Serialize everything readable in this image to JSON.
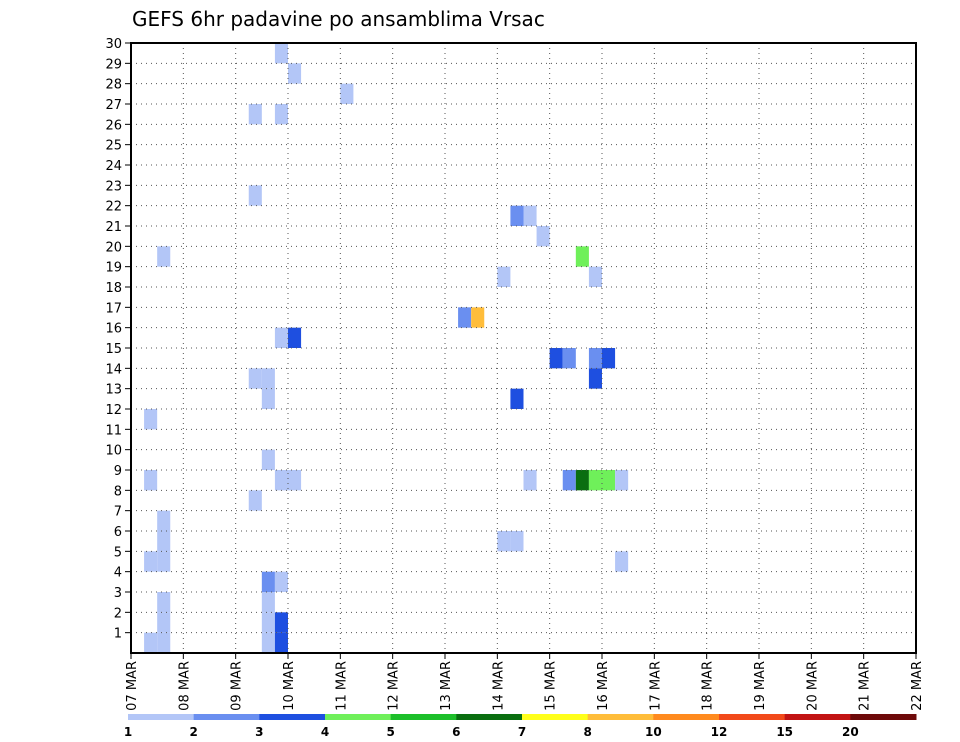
{
  "chart_data": {
    "type": "heatmap",
    "title": "GEFS 6hr padavine po ansamblima Vrsac",
    "xlabel": "",
    "ylabel": "",
    "x_tick_labels": [
      "07 MAR",
      "08 MAR",
      "09 MAR",
      "10 MAR",
      "11 MAR",
      "12 MAR",
      "13 MAR",
      "14 MAR",
      "15 MAR",
      "16 MAR",
      "17 MAR",
      "18 MAR",
      "19 MAR",
      "20 MAR",
      "21 MAR",
      "22 MAR"
    ],
    "y_tick_labels": [
      "1",
      "2",
      "3",
      "4",
      "5",
      "6",
      "7",
      "8",
      "9",
      "10",
      "11",
      "12",
      "13",
      "14",
      "15",
      "16",
      "17",
      "18",
      "19",
      "20",
      "21",
      "22",
      "23",
      "24",
      "25",
      "26",
      "27",
      "28",
      "29",
      "30"
    ],
    "xlim": [
      0,
      60
    ],
    "ylim": [
      0,
      30
    ],
    "grid": true,
    "colorbar": {
      "labels": [
        "1",
        "2",
        "3",
        "4",
        "5",
        "6",
        "7",
        "8",
        "10",
        "12",
        "15",
        "20"
      ],
      "colors": [
        "#b3c6f7",
        "#6a8ff0",
        "#1e4fe0",
        "#6ff05a",
        "#1dbf2a",
        "#0a6e10",
        "#ffff1a",
        "#ffbd3a",
        "#ff8a1e",
        "#f24a1a",
        "#c21414",
        "#6e0a0a"
      ]
    },
    "cells": [
      {
        "x": 1,
        "y": 0,
        "v": 1
      },
      {
        "x": 2,
        "y": 0,
        "v": 1
      },
      {
        "x": 2,
        "y": 1,
        "v": 1
      },
      {
        "x": 2,
        "y": 2,
        "v": 1
      },
      {
        "x": 2,
        "y": 4,
        "v": 1
      },
      {
        "x": 2,
        "y": 5,
        "v": 1
      },
      {
        "x": 2,
        "y": 6,
        "v": 1
      },
      {
        "x": 1,
        "y": 4,
        "v": 1
      },
      {
        "x": 1,
        "y": 8,
        "v": 1
      },
      {
        "x": 1,
        "y": 11,
        "v": 1
      },
      {
        "x": 2,
        "y": 19,
        "v": 1
      },
      {
        "x": 10,
        "y": 0,
        "v": 1
      },
      {
        "x": 10,
        "y": 1,
        "v": 1
      },
      {
        "x": 10,
        "y": 2,
        "v": 1
      },
      {
        "x": 10,
        "y": 3,
        "v": 2.5
      },
      {
        "x": 11,
        "y": 0,
        "v": 3.5
      },
      {
        "x": 11,
        "y": 1,
        "v": 3.5
      },
      {
        "x": 11,
        "y": 3,
        "v": 1
      },
      {
        "x": 9,
        "y": 7,
        "v": 1
      },
      {
        "x": 11,
        "y": 8,
        "v": 1
      },
      {
        "x": 12,
        "y": 8,
        "v": 1
      },
      {
        "x": 10,
        "y": 9,
        "v": 1
      },
      {
        "x": 10,
        "y": 12,
        "v": 1
      },
      {
        "x": 9,
        "y": 13,
        "v": 1
      },
      {
        "x": 10,
        "y": 13,
        "v": 1
      },
      {
        "x": 11,
        "y": 15,
        "v": 1
      },
      {
        "x": 12,
        "y": 15,
        "v": 3.5
      },
      {
        "x": 9,
        "y": 22,
        "v": 1
      },
      {
        "x": 9,
        "y": 26,
        "v": 1
      },
      {
        "x": 11,
        "y": 26,
        "v": 1
      },
      {
        "x": 11,
        "y": 29,
        "v": 1
      },
      {
        "x": 12,
        "y": 28,
        "v": 1
      },
      {
        "x": 16,
        "y": 27,
        "v": 1
      },
      {
        "x": 28,
        "y": 5,
        "v": 1
      },
      {
        "x": 29,
        "y": 5,
        "v": 1
      },
      {
        "x": 25,
        "y": 16,
        "v": 2.5
      },
      {
        "x": 26,
        "y": 16,
        "v": 8.5
      },
      {
        "x": 28,
        "y": 18,
        "v": 1
      },
      {
        "x": 29,
        "y": 21,
        "v": 2.5
      },
      {
        "x": 30,
        "y": 21,
        "v": 1
      },
      {
        "x": 29,
        "y": 12,
        "v": 3.5
      },
      {
        "x": 31,
        "y": 20,
        "v": 1
      },
      {
        "x": 30,
        "y": 8,
        "v": 1
      },
      {
        "x": 32,
        "y": 14,
        "v": 3.5
      },
      {
        "x": 33,
        "y": 14,
        "v": 2.5
      },
      {
        "x": 34,
        "y": 19,
        "v": 4.5
      },
      {
        "x": 35,
        "y": 18,
        "v": 1
      },
      {
        "x": 35,
        "y": 14,
        "v": 2.5
      },
      {
        "x": 36,
        "y": 14,
        "v": 3.5
      },
      {
        "x": 35,
        "y": 13,
        "v": 3.5
      },
      {
        "x": 33,
        "y": 8,
        "v": 2.5
      },
      {
        "x": 34,
        "y": 8,
        "v": 6.5
      },
      {
        "x": 35,
        "y": 8,
        "v": 4.5
      },
      {
        "x": 36,
        "y": 8,
        "v": 4.5
      },
      {
        "x": 37,
        "y": 8,
        "v": 1
      },
      {
        "x": 37,
        "y": 4,
        "v": 1
      }
    ]
  }
}
